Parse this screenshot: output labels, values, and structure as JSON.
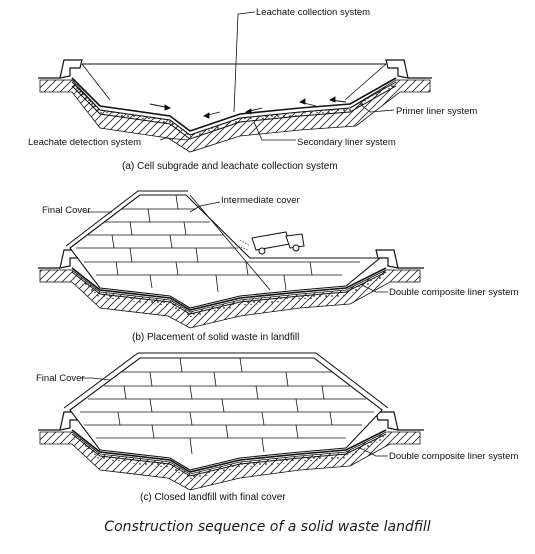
{
  "panel_a": {
    "caption": "(a) Cell subgrade and leachate collection system",
    "labels": {
      "leachate_collection": "Leachate collection system",
      "primer_liner": "Primer liner system",
      "leachate_detection": "Leachate detection system",
      "secondary_liner": "Secondary liner system"
    }
  },
  "panel_b": {
    "caption": "(b) Placement of solid waste in landfill",
    "labels": {
      "final_cover": "Final Cover",
      "intermediate_cover": "Intermediate cover",
      "double_liner": "Double composite liner system"
    }
  },
  "panel_c": {
    "caption": "(c) Closed landfill with final cover",
    "labels": {
      "final_cover": "Final Cover",
      "double_liner": "Double composite liner system"
    }
  },
  "figure_caption": "Construction sequence of a solid waste landfill"
}
